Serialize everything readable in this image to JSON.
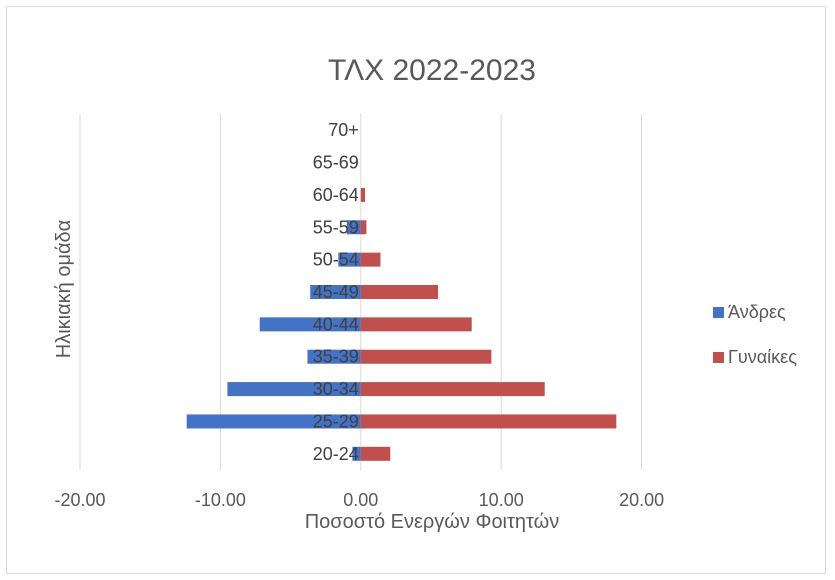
{
  "chart_data": {
    "type": "bar",
    "orientation": "horizontal",
    "title": "ΤΛΧ 2022-2023",
    "xlabel": "Ποσοστό Ενεργών Φοιτητών",
    "ylabel": "Ηλικιακή ομάδα",
    "xlim": [
      -20,
      30
    ],
    "xticks": [
      -20,
      -10,
      0,
      10,
      20
    ],
    "xtick_labels": [
      "-20.00",
      "-10.00",
      "0.00",
      "10.00",
      "20.00"
    ],
    "grid": true,
    "legend_position": "right",
    "categories": [
      "20-24",
      "25-29",
      "30-34",
      "35-39",
      "40-44",
      "45-49",
      "50-54",
      "55-59",
      "60-64",
      "65-69",
      "70+"
    ],
    "series": [
      {
        "name": "Άνδρες",
        "color": "#4472C4",
        "values": [
          -0.6,
          -12.4,
          -9.5,
          -3.8,
          -7.2,
          -3.6,
          -1.6,
          -1.0,
          0,
          0,
          0
        ]
      },
      {
        "name": "Γυναίκες",
        "color": "#C0504D",
        "values": [
          2.1,
          18.2,
          13.1,
          9.3,
          7.9,
          5.5,
          1.4,
          0.4,
          0.3,
          0,
          0
        ]
      }
    ]
  }
}
